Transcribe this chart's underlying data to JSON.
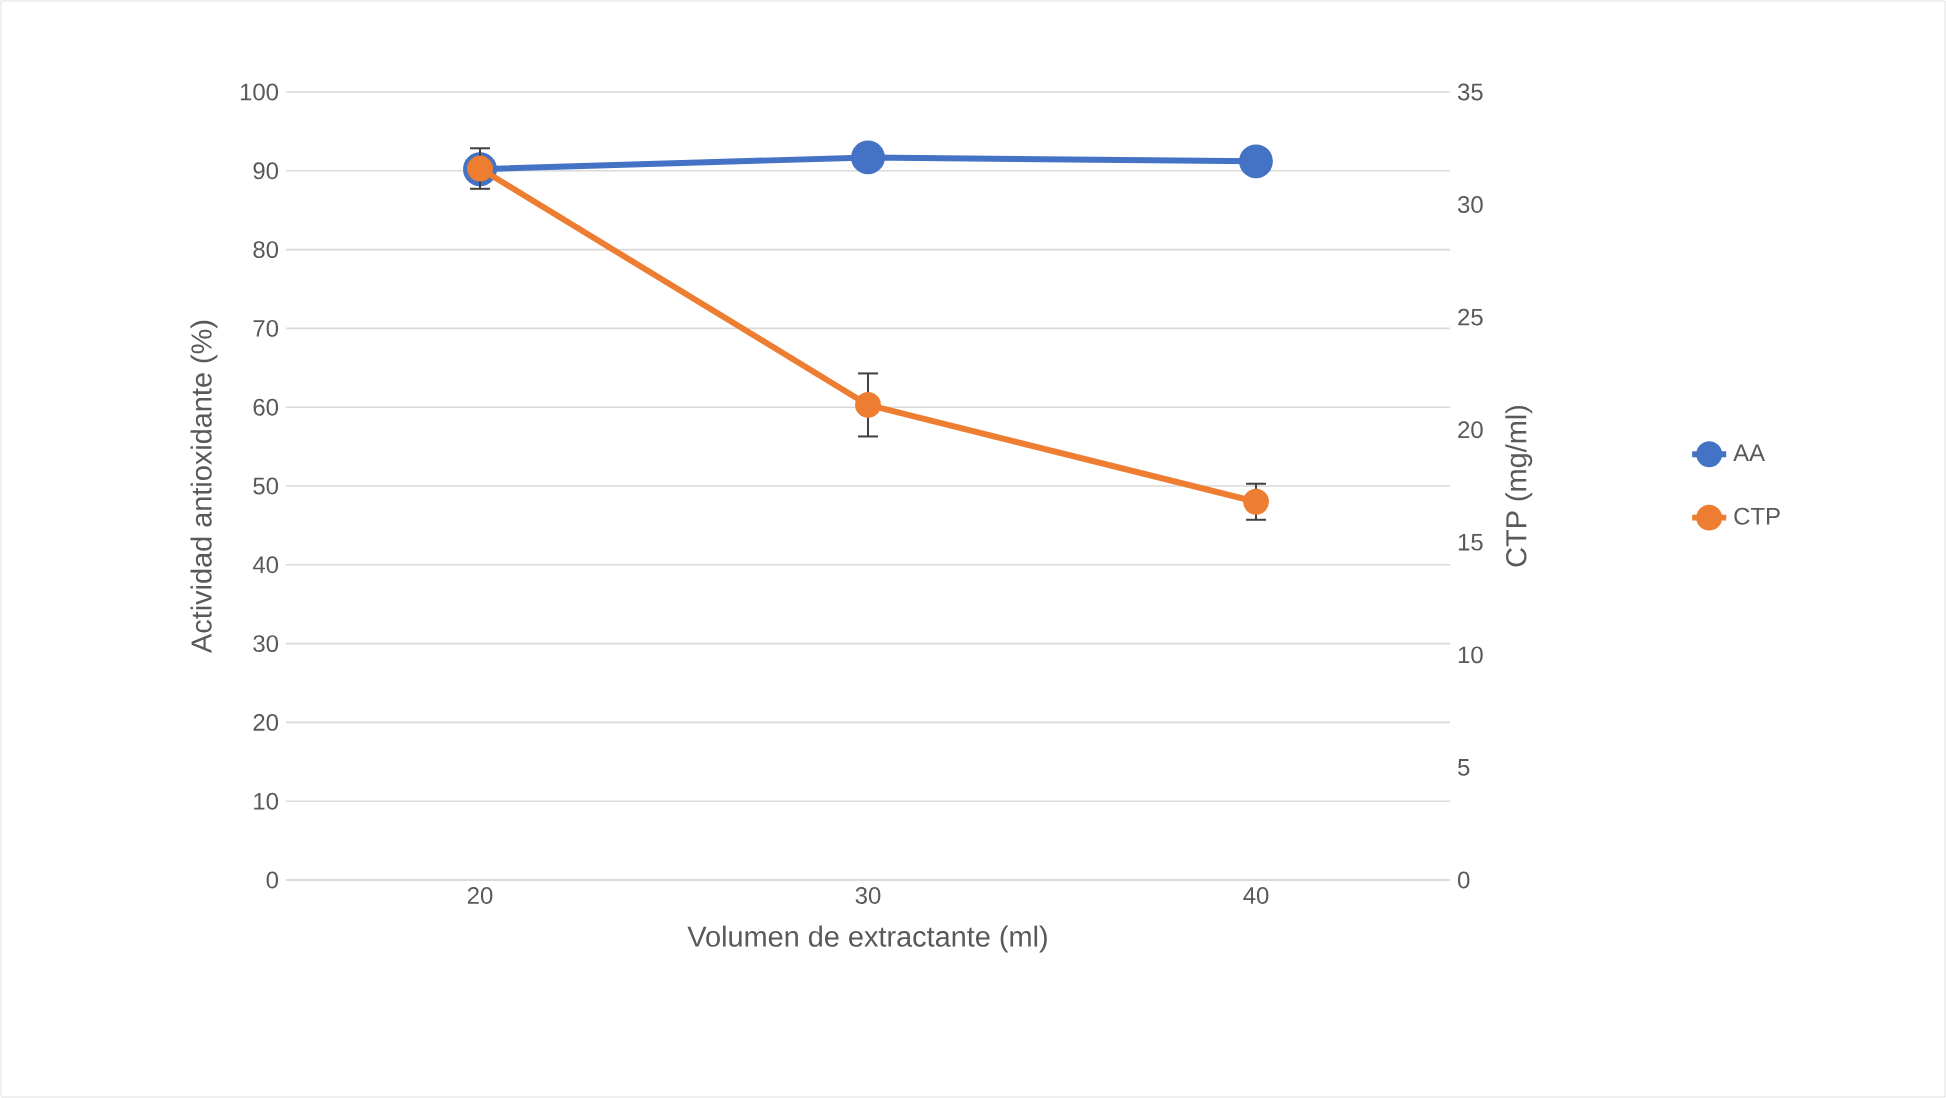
{
  "chart_data": {
    "type": "line",
    "xlabel": "Volumen de extractante (ml)",
    "ylabel": "Actividad antioxidante (%)",
    "y2label": "CTP (mg/ml)",
    "categories": [
      "20",
      "30",
      "40"
    ],
    "series": [
      {
        "name": "AA",
        "color": "#4472c4",
        "values": [
          90.2,
          91.7,
          91.2
        ]
      },
      {
        "name": "CTP",
        "color": "#ed7d31",
        "values": [
          31.6,
          21.1,
          16.8
        ],
        "axis": "y2",
        "errors": [
          0.9,
          1.4,
          0.8
        ]
      }
    ],
    "ylim": [
      0,
      100
    ],
    "yticks": [
      0,
      10,
      20,
      30,
      40,
      50,
      60,
      70,
      80,
      90,
      100
    ],
    "y2lim": [
      0,
      35
    ],
    "y2ticks": [
      0,
      5,
      10,
      15,
      20,
      25,
      30,
      35
    ],
    "grid": "y",
    "legend": "right",
    "marker": "circle",
    "line_style": "solid"
  }
}
